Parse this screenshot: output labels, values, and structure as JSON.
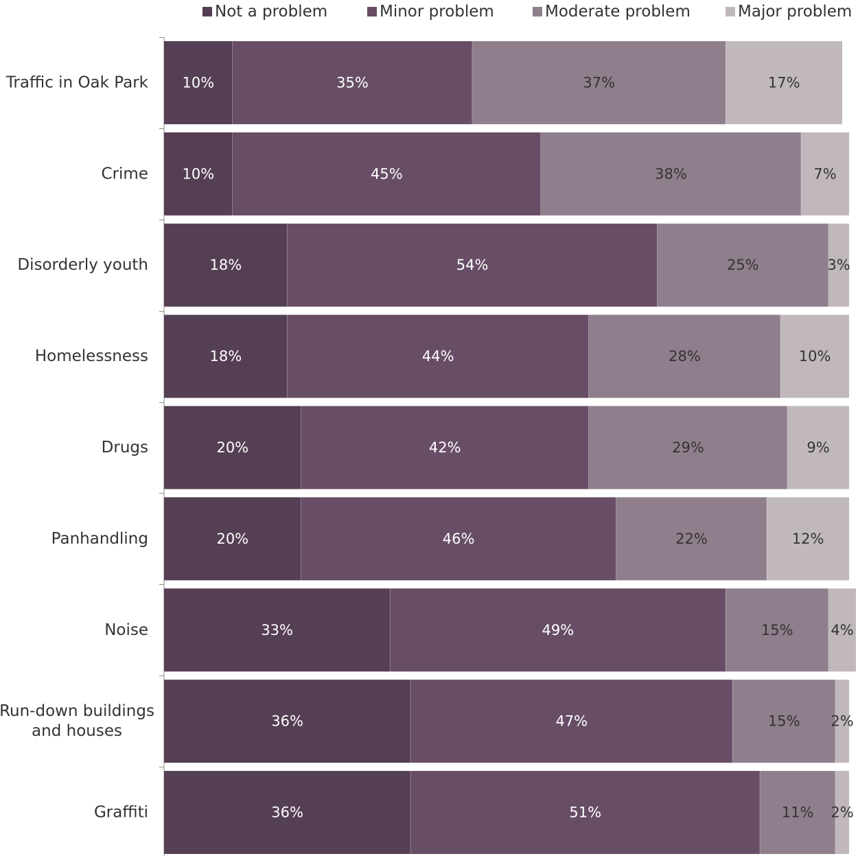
{
  "chart_data": {
    "type": "bar",
    "orientation": "horizontal",
    "stacked": true,
    "title": "",
    "xlabel": "",
    "ylabel": "",
    "xlim": [
      0,
      100
    ],
    "unit": "%",
    "grid": false,
    "legend_position": "top",
    "categories": [
      "Traffic in Oak Park",
      "Crime",
      "Disorderly youth",
      "Homelessness",
      "Drugs",
      "Panhandling",
      "Noise",
      "Run-down buildings and houses",
      "Graffiti"
    ],
    "category_lines": [
      [
        "Traffic in Oak Park"
      ],
      [
        "Crime"
      ],
      [
        "Disorderly youth"
      ],
      [
        "Homelessness"
      ],
      [
        "Drugs"
      ],
      [
        "Panhandling"
      ],
      [
        "Noise"
      ],
      [
        "Run-down buildings",
        "and houses"
      ],
      [
        "Graffiti"
      ]
    ],
    "series": [
      {
        "name": "Not a problem",
        "color": "#553f54",
        "label_color": "#ffffff",
        "values": [
          10,
          10,
          18,
          18,
          20,
          20,
          33,
          36,
          36
        ]
      },
      {
        "name": "Minor problem",
        "color": "#674e66",
        "label_color": "#ffffff",
        "values": [
          35,
          45,
          54,
          44,
          42,
          46,
          49,
          47,
          51
        ]
      },
      {
        "name": "Moderate problem",
        "color": "#8f7e8c",
        "label_color": "#333333",
        "values": [
          37,
          38,
          25,
          28,
          29,
          22,
          15,
          15,
          11
        ]
      },
      {
        "name": "Major problem",
        "color": "#c1b8be",
        "label_color": "#333333",
        "values": [
          17,
          7,
          3,
          10,
          9,
          12,
          4,
          2,
          2
        ]
      }
    ]
  }
}
